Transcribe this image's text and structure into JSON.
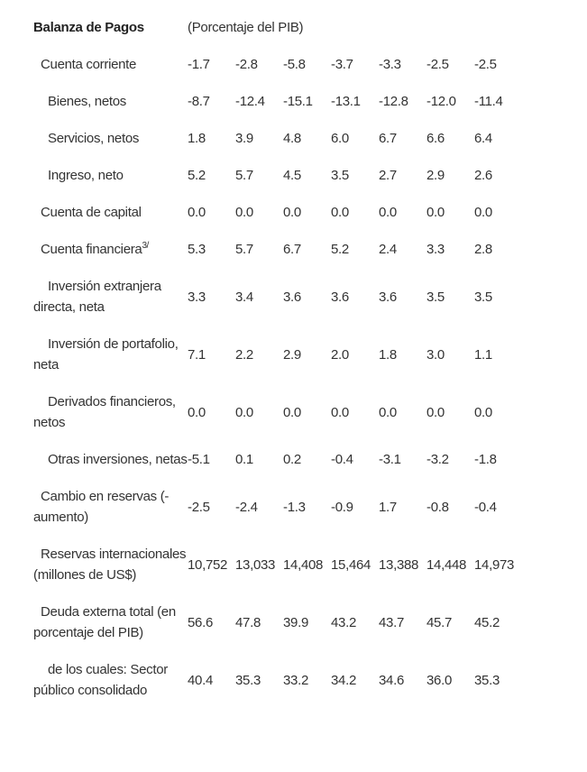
{
  "header": {
    "title": "Balanza de Pagos",
    "subtitle": "(Porcentaje del PIB)"
  },
  "rows": [
    {
      "label": "Cuenta corriente",
      "values": [
        "-1.7",
        "-2.8",
        "-5.8",
        "-3.7",
        "-3.3",
        "-2.5",
        "-2.5"
      ]
    },
    {
      "label": "Bienes, netos",
      "values": [
        "-8.7",
        "-12.4",
        "-15.1",
        "-13.1",
        "-12.8",
        "-12.0",
        "-11.4"
      ]
    },
    {
      "label": "Servicios, netos",
      "values": [
        "1.8",
        "3.9",
        "4.8",
        "6.0",
        "6.7",
        "6.6",
        "6.4"
      ]
    },
    {
      "label": "Ingreso, neto",
      "values": [
        "5.2",
        "5.7",
        "4.5",
        "3.5",
        "2.7",
        "2.9",
        "2.6"
      ]
    },
    {
      "label": "Cuenta de capital",
      "values": [
        "0.0",
        "0.0",
        "0.0",
        "0.0",
        "0.0",
        "0.0",
        "0.0"
      ]
    },
    {
      "label": "Cuenta financiera",
      "footnote": "3/",
      "values": [
        "5.3",
        "5.7",
        "6.7",
        "5.2",
        "2.4",
        "3.3",
        "2.8"
      ]
    },
    {
      "label": "Inversión extranjera directa, neta",
      "values": [
        "3.3",
        "3.4",
        "3.6",
        "3.6",
        "3.6",
        "3.5",
        "3.5"
      ]
    },
    {
      "label": "Inversión de portafolio, neta",
      "values": [
        "7.1",
        "2.2",
        "2.9",
        "2.0",
        "1.8",
        "3.0",
        "1.1"
      ]
    },
    {
      "label": "Derivados financieros, netos",
      "values": [
        "0.0",
        "0.0",
        "0.0",
        "0.0",
        "0.0",
        "0.0",
        "0.0"
      ]
    },
    {
      "label": "Otras inversiones, netas",
      "values": [
        "-5.1",
        "0.1",
        "0.2",
        "-0.4",
        "-3.1",
        "-3.2",
        "-1.8"
      ]
    },
    {
      "label": "Cambio en reservas (-aumento)",
      "values": [
        "-2.5",
        "-2.4",
        "-1.3",
        "-0.9",
        "1.7",
        "-0.8",
        "-0.4"
      ]
    },
    {
      "label": "Reservas internacionales (millones de US$)",
      "values": [
        "10,752",
        "13,033",
        "14,408",
        "15,464",
        "13,388",
        "14,448",
        "14,973"
      ]
    },
    {
      "label": "Deuda externa total (en porcentaje del PIB)",
      "values": [
        "56.6",
        "47.8",
        "39.9",
        "43.2",
        "43.7",
        "45.7",
        "45.2"
      ]
    },
    {
      "label": "de los cuales: Sector público consolidado",
      "values": [
        "40.4",
        "35.3",
        "33.2",
        "34.2",
        "34.6",
        "36.0",
        "35.3"
      ]
    }
  ]
}
